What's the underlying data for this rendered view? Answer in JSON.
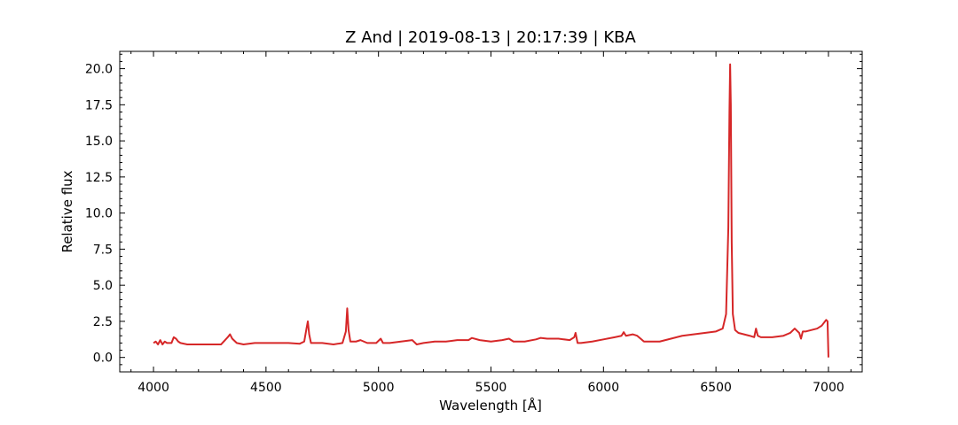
{
  "chart_data": {
    "type": "line",
    "title": "Z And | 2019-08-13 | 20:17:39 | KBA",
    "xlabel": "Wavelength [Å]",
    "ylabel": "Relative flux",
    "xlim": [
      3850,
      7150
    ],
    "ylim": [
      -1.0,
      21.2
    ],
    "xticks": [
      4000,
      4500,
      5000,
      5500,
      6000,
      6500,
      7000
    ],
    "xtick_labels": [
      "4000",
      "4500",
      "5000",
      "5500",
      "6000",
      "6500",
      "7000"
    ],
    "yticks": [
      0.0,
      2.5,
      5.0,
      7.5,
      10.0,
      12.5,
      15.0,
      17.5,
      20.0
    ],
    "ytick_labels": [
      "0.0",
      "2.5",
      "5.0",
      "7.5",
      "10.0",
      "12.5",
      "15.0",
      "17.5",
      "20.0"
    ],
    "grid": false,
    "line_color": "#d62728",
    "series": [
      {
        "name": "",
        "x": [
          4000,
          4010,
          4020,
          4030,
          4040,
          4050,
          4060,
          4070,
          4080,
          4090,
          4100,
          4110,
          4120,
          4150,
          4200,
          4250,
          4300,
          4330,
          4340,
          4350,
          4370,
          4400,
          4450,
          4500,
          4550,
          4600,
          4650,
          4670,
          4680,
          4686,
          4692,
          4700,
          4750,
          4800,
          4840,
          4855,
          4861,
          4867,
          4875,
          4900,
          4920,
          4950,
          4990,
          5010,
          5020,
          5050,
          5100,
          5150,
          5170,
          5200,
          5250,
          5300,
          5350,
          5400,
          5415,
          5450,
          5500,
          5550,
          5580,
          5600,
          5650,
          5700,
          5720,
          5750,
          5800,
          5850,
          5870,
          5876,
          5885,
          5900,
          5950,
          6000,
          6050,
          6080,
          6090,
          6100,
          6130,
          6150,
          6180,
          6200,
          6250,
          6300,
          6350,
          6400,
          6450,
          6500,
          6530,
          6545,
          6555,
          6560,
          6563,
          6566,
          6570,
          6575,
          6585,
          6600,
          6650,
          6670,
          6678,
          6686,
          6700,
          6750,
          6800,
          6830,
          6850,
          6870,
          6878,
          6886,
          6900,
          6950,
          6970,
          6990,
          6996,
          7000
        ],
        "y": [
          1.0,
          1.1,
          0.9,
          1.2,
          0.9,
          1.1,
          1.0,
          1.0,
          1.0,
          1.4,
          1.3,
          1.1,
          1.0,
          0.9,
          0.9,
          0.9,
          0.9,
          1.4,
          1.6,
          1.3,
          1.0,
          0.9,
          1.0,
          1.0,
          1.0,
          1.0,
          0.95,
          1.1,
          2.0,
          2.5,
          1.6,
          1.0,
          1.0,
          0.9,
          1.0,
          1.8,
          3.4,
          1.9,
          1.1,
          1.1,
          1.2,
          1.0,
          1.0,
          1.3,
          1.0,
          1.0,
          1.1,
          1.2,
          0.9,
          1.0,
          1.1,
          1.1,
          1.2,
          1.2,
          1.35,
          1.2,
          1.1,
          1.2,
          1.3,
          1.1,
          1.1,
          1.25,
          1.35,
          1.3,
          1.3,
          1.2,
          1.4,
          1.7,
          1.0,
          1.0,
          1.1,
          1.25,
          1.4,
          1.5,
          1.75,
          1.5,
          1.6,
          1.5,
          1.1,
          1.1,
          1.1,
          1.3,
          1.5,
          1.6,
          1.7,
          1.8,
          2.0,
          3.0,
          9.0,
          17.0,
          20.3,
          17.5,
          8.0,
          3.0,
          1.9,
          1.7,
          1.5,
          1.4,
          2.0,
          1.5,
          1.4,
          1.4,
          1.5,
          1.7,
          2.0,
          1.7,
          1.3,
          1.8,
          1.8,
          2.0,
          2.2,
          2.6,
          2.5,
          0.0
        ]
      }
    ]
  }
}
